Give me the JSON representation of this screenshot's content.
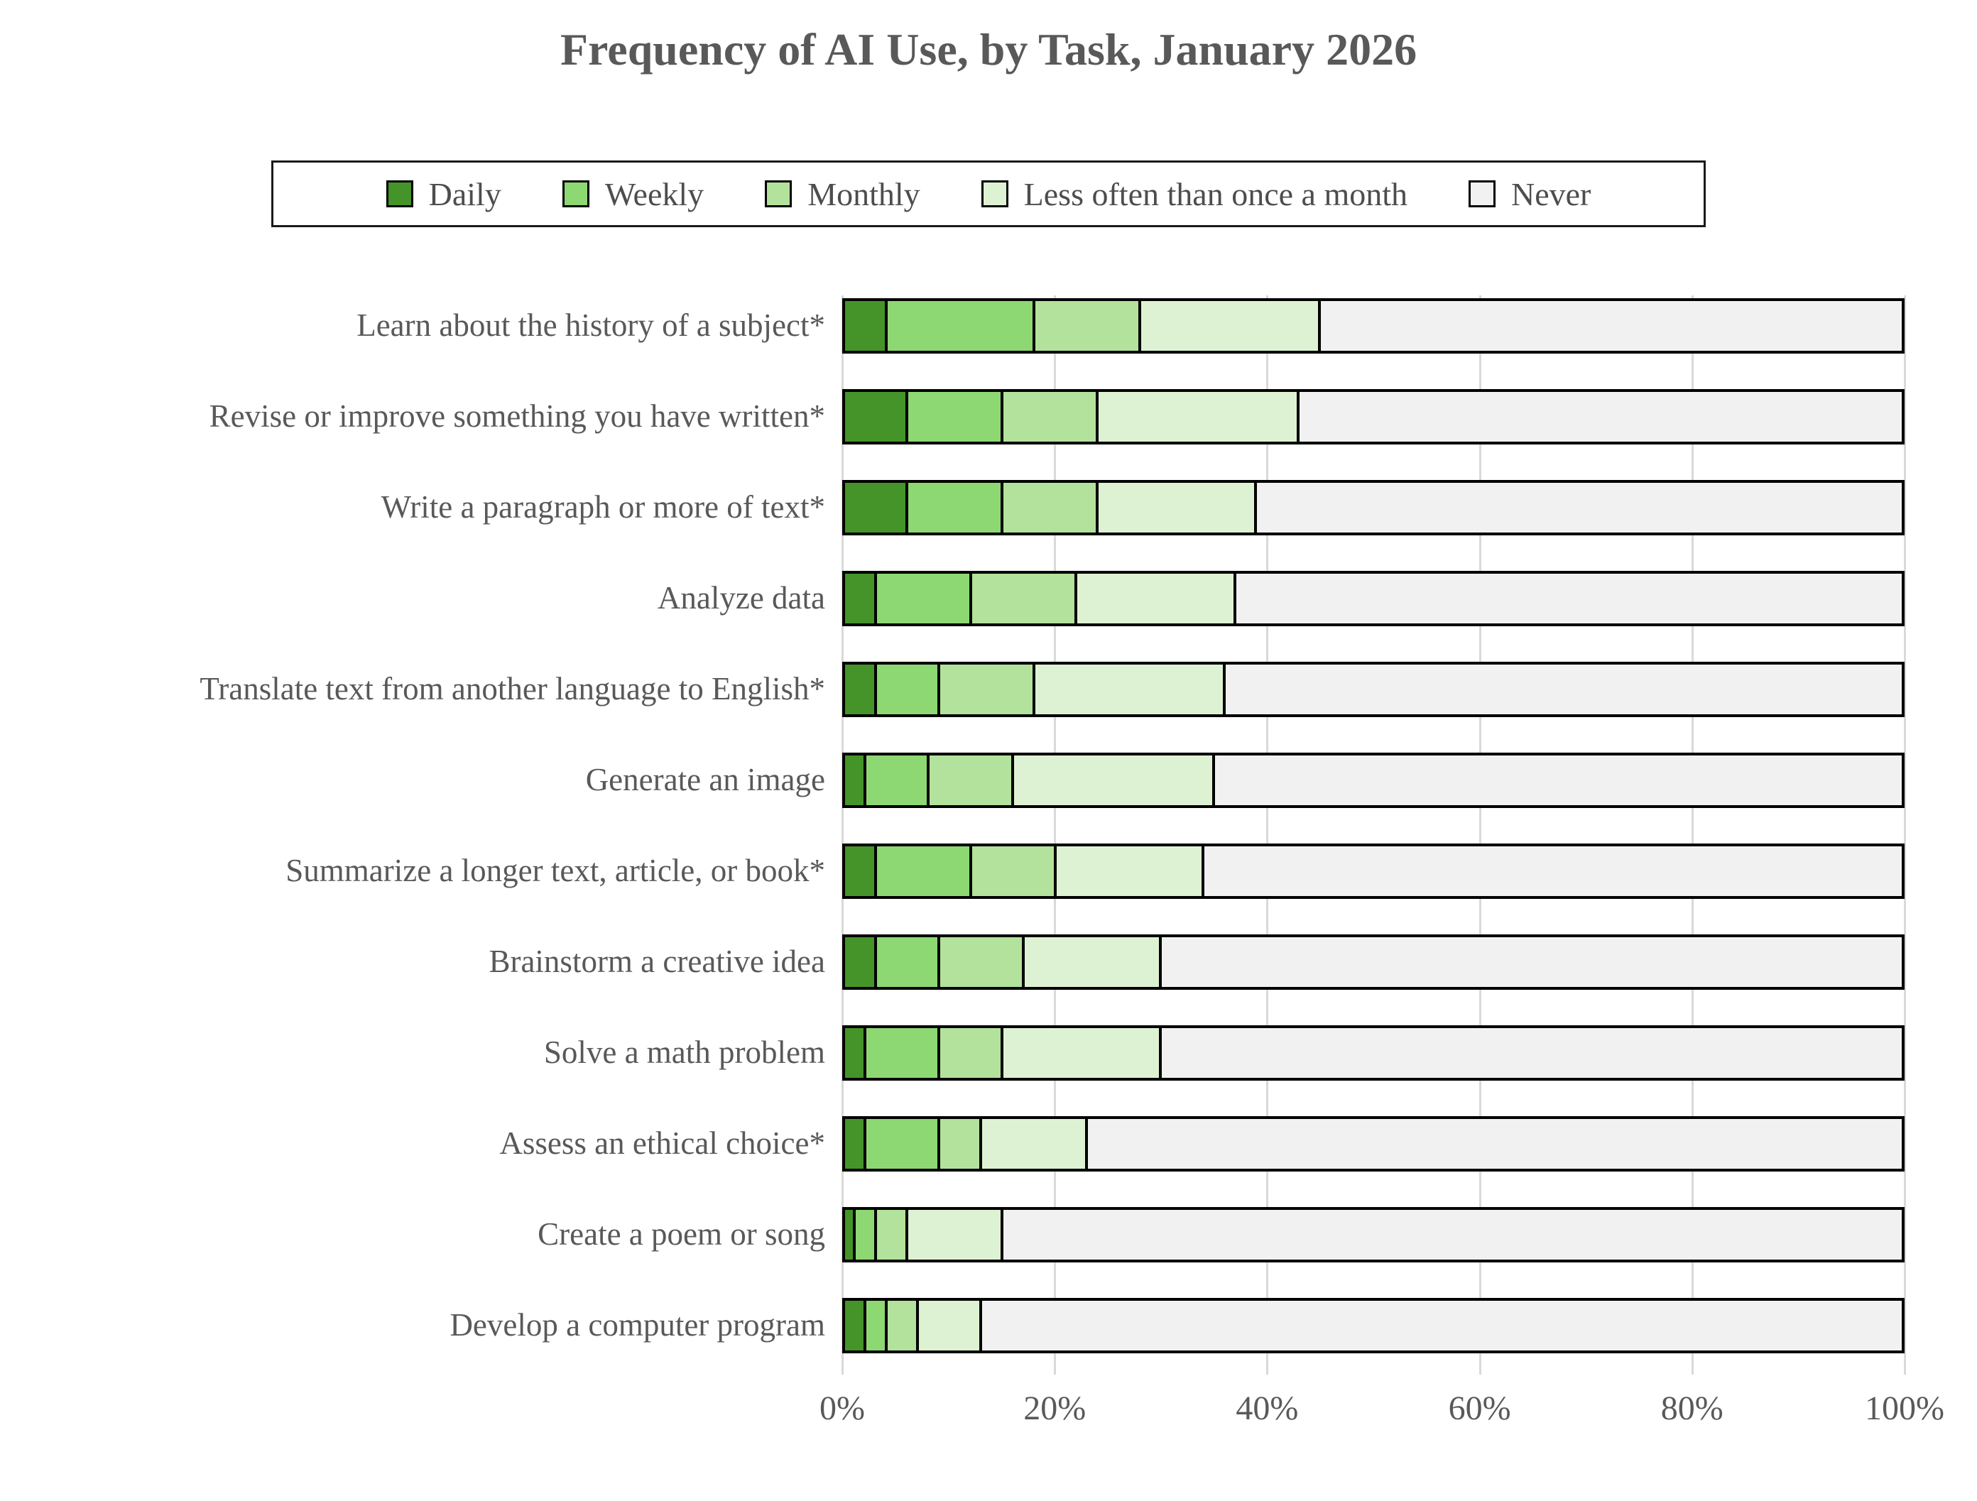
{
  "title": "Frequency of AI Use, by Task, January 2026",
  "chart_data": {
    "type": "bar",
    "stacked": true,
    "orientation": "horizontal",
    "title": "Frequency of AI Use, by Task, January 2026",
    "legend_position": "top",
    "grid": true,
    "categories": [
      "Learn about the history of a subject*",
      "Revise or improve something you have written*",
      "Write a paragraph or more of text*",
      "Analyze data",
      "Translate text from another language to English*",
      "Generate an image",
      "Summarize a longer text, article, or book*",
      "Brainstorm a creative idea",
      "Solve a math problem",
      "Assess an ethical choice*",
      "Create a poem or song",
      "Develop a computer program"
    ],
    "series": [
      {
        "name": "Daily",
        "color": "#459429",
        "values": [
          4,
          6,
          6,
          3,
          3,
          2,
          3,
          3,
          2,
          2,
          1,
          2
        ]
      },
      {
        "name": "Weekly",
        "color": "#8dd873",
        "values": [
          14,
          9,
          9,
          9,
          6,
          6,
          9,
          6,
          7,
          7,
          2,
          2
        ]
      },
      {
        "name": "Monthly",
        "color": "#b2e29b",
        "values": [
          10,
          9,
          9,
          10,
          9,
          8,
          8,
          8,
          6,
          4,
          3,
          3
        ]
      },
      {
        "name": "Less often than once a month",
        "color": "#ddf2d2",
        "values": [
          17,
          19,
          15,
          15,
          18,
          19,
          14,
          13,
          15,
          10,
          9,
          6
        ]
      },
      {
        "name": "Never",
        "color": "#f1f1f1",
        "values": [
          55,
          57,
          61,
          63,
          64,
          65,
          66,
          70,
          70,
          77,
          85,
          87
        ]
      }
    ],
    "x_axis": {
      "range": [
        0,
        100
      ],
      "tick_values": [
        0,
        20,
        40,
        60,
        80,
        100
      ],
      "ticks": [
        "0%",
        "20%",
        "40%",
        "60%",
        "80%",
        "100%"
      ]
    }
  },
  "style_colors": {
    "title_text": "#595959",
    "label_text": "#595959",
    "legend_text": "#4d4d4d",
    "gridline": "#d9d9d9",
    "bar_border": "#000000"
  }
}
